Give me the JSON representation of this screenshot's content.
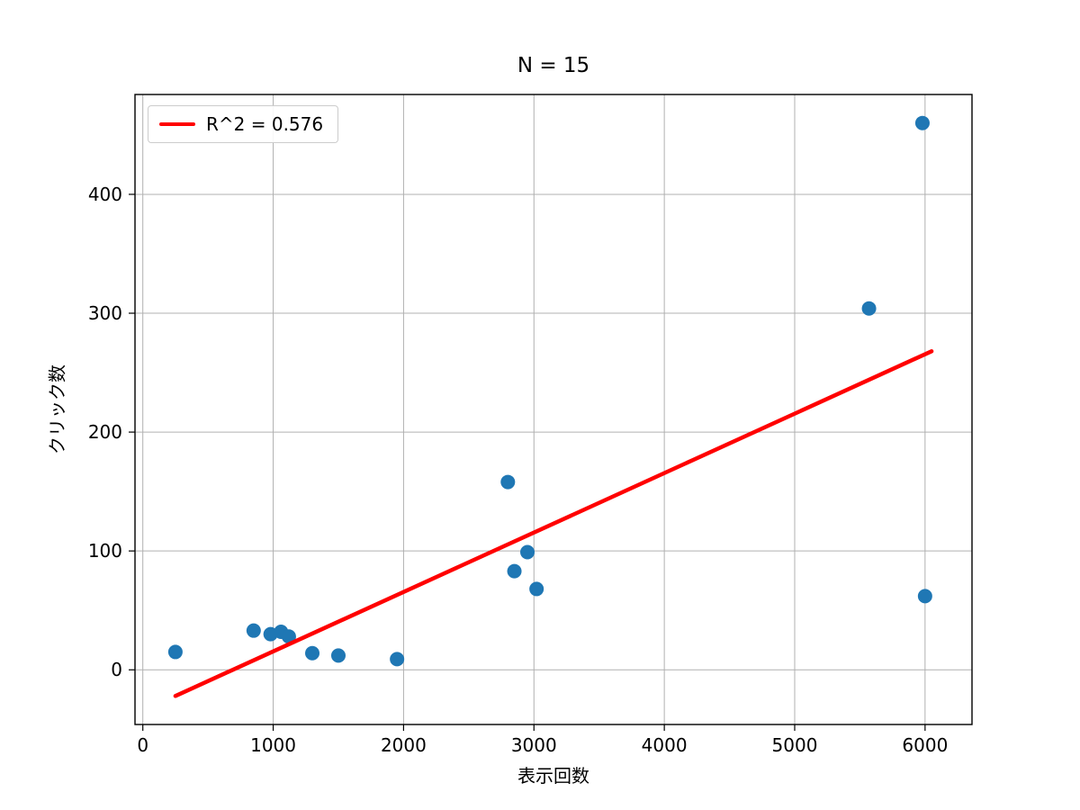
{
  "figure": {
    "title": "N = 15",
    "xlabel": "表示回数",
    "ylabel": "クリック数",
    "legend": {
      "label": "R^2 = 0.576"
    }
  },
  "chart_data": {
    "type": "scatter",
    "title": "N = 15",
    "xlabel": "表示回数",
    "ylabel": "クリック数",
    "n": 15,
    "grid": true,
    "legend_position": "upper-left",
    "xlim": [
      -60,
      6360
    ],
    "ylim": [
      -46,
      484
    ],
    "x_ticks": [
      0,
      1000,
      2000,
      3000,
      4000,
      5000,
      6000
    ],
    "y_ticks": [
      0,
      100,
      200,
      300,
      400
    ],
    "marker_color": "#1f77b4",
    "line_color": "#ff0000",
    "grid_color": "#b0b0b0",
    "spine_color": "#000000",
    "points": [
      [
        250,
        15
      ],
      [
        850,
        33
      ],
      [
        980,
        30
      ],
      [
        1060,
        32
      ],
      [
        1120,
        28
      ],
      [
        1300,
        14
      ],
      [
        1500,
        12
      ],
      [
        1950,
        9
      ],
      [
        2800,
        158
      ],
      [
        2850,
        83
      ],
      [
        2950,
        99
      ],
      [
        3020,
        68
      ],
      [
        5570,
        304
      ],
      [
        5980,
        460
      ],
      [
        6000,
        62
      ]
    ],
    "regression_line": {
      "r_squared": 0.576,
      "label": "R^2 = 0.576",
      "x1": 250,
      "y1": -22,
      "x2": 6050,
      "y2": 268
    }
  }
}
